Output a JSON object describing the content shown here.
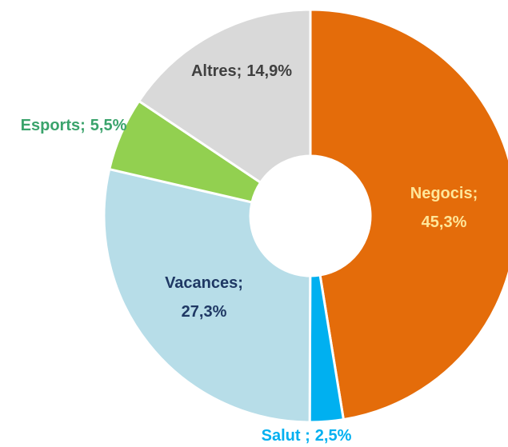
{
  "chart_data": {
    "type": "pie",
    "donut": true,
    "categories": [
      "Negocis;",
      "Salut ;",
      "Vacances;",
      "Esports;",
      "Altres;"
    ],
    "values": [
      45.3,
      2.5,
      27.3,
      5.5,
      14.9
    ],
    "value_labels": [
      "45,3%",
      "2,5%",
      "27,3%",
      "5,5%",
      "14,9%"
    ],
    "colors": [
      "#e46c0a",
      "#00b0f0",
      "#b7dde8",
      "#92d050",
      "#d9d9d9"
    ],
    "label_colors": [
      "#ffe699",
      "#00b0f0",
      "#1f3864",
      "#3aa36b",
      "#404040"
    ]
  }
}
